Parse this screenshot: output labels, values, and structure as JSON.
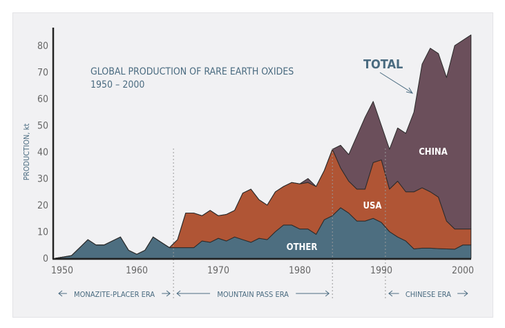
{
  "chart_data": {
    "type": "area",
    "stacked": true,
    "title": "GLOBAL PRODUCTION OF RARE EARTH OXIDES",
    "subtitle": "1950 – 2000",
    "ylabel": "PRODUCTION, kt",
    "xlabel": "",
    "xlim": [
      1950,
      2001
    ],
    "ylim": [
      0,
      84
    ],
    "x_ticks": [
      "1950",
      "1960",
      "1970",
      "1980",
      "1990",
      "2000"
    ],
    "y_ticks": [
      "0",
      "10",
      "20",
      "30",
      "40",
      "50",
      "60",
      "70",
      "80"
    ],
    "grid": false,
    "x": [
      1950,
      1951,
      1952,
      1953,
      1954,
      1955,
      1956,
      1957,
      1958,
      1959,
      1960,
      1961,
      1962,
      1963,
      1964,
      1965,
      1966,
      1967,
      1968,
      1969,
      1970,
      1971,
      1972,
      1973,
      1974,
      1975,
      1976,
      1977,
      1978,
      1979,
      1980,
      1981,
      1982,
      1983,
      1984,
      1985,
      1986,
      1987,
      1988,
      1989,
      1990,
      1991,
      1992,
      1993,
      1994,
      1995,
      1996,
      1997,
      1998,
      1999,
      2000,
      2001
    ],
    "series": [
      {
        "name": "OTHER",
        "color": "#4d6e80",
        "values": [
          0,
          0.5,
          1,
          4,
          7,
          5,
          5,
          6.5,
          8,
          3,
          1.5,
          3,
          8,
          6,
          4,
          4,
          4,
          4,
          6.5,
          6,
          7.5,
          6.5,
          8,
          7,
          6,
          7.5,
          7,
          10,
          12.5,
          12.5,
          11,
          11,
          9,
          14.5,
          16,
          19,
          17,
          14,
          14,
          15,
          13.5,
          10,
          8,
          6.5,
          3.5,
          3.8,
          3.8,
          3.6,
          3.5,
          3.4,
          5,
          5
        ]
      },
      {
        "name": "USA",
        "color": "#b05535",
        "values": [
          0,
          0,
          0,
          0,
          0,
          0,
          0,
          0,
          0,
          0,
          0,
          0,
          0,
          0,
          0,
          3,
          13,
          13,
          9.5,
          12,
          8.5,
          10,
          10,
          17.5,
          20,
          14.5,
          13,
          15,
          14.5,
          16,
          17,
          17.5,
          18,
          18.5,
          25,
          15,
          12,
          12,
          12,
          21,
          23.5,
          16,
          21,
          18.5,
          21.5,
          22.7,
          21.2,
          19.4,
          10.5,
          7.6,
          6,
          6
        ]
      },
      {
        "name": "CHINA",
        "color": "#6b4f5b",
        "values": [
          0,
          0,
          0,
          0,
          0,
          0,
          0,
          0,
          0,
          0,
          0,
          0,
          0,
          0,
          0,
          0,
          0,
          0,
          0,
          0,
          0,
          0,
          0,
          0,
          0,
          0,
          0,
          0,
          0,
          0,
          0,
          1.5,
          0,
          0,
          0,
          8.5,
          10,
          20,
          27,
          23,
          13,
          15,
          20,
          22,
          30,
          46.5,
          54,
          54,
          54,
          69,
          71,
          73
        ]
      }
    ],
    "annotations": {
      "total": "TOTAL"
    },
    "eras": [
      {
        "label": "MONAZITE-PLACER ERA",
        "from": 1950,
        "to": 1964.5
      },
      {
        "label": "MOUNTAIN PASS ERA",
        "from": 1964.5,
        "to": 1984
      },
      {
        "label": "CHINESE ERA",
        "from": 1990.5,
        "to": 2001
      }
    ]
  }
}
